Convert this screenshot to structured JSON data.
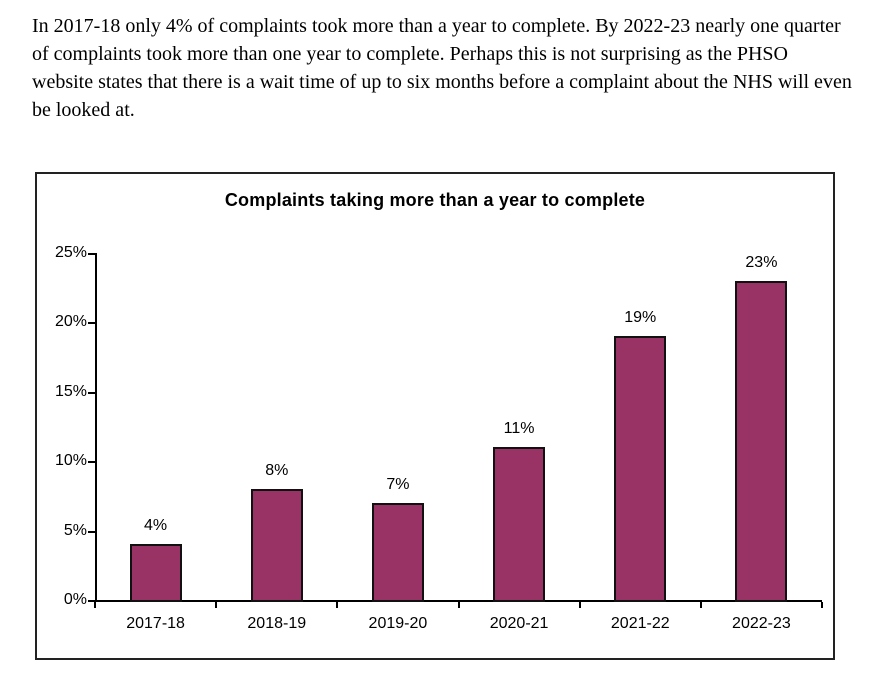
{
  "paragraph": "In 2017-18 only 4% of complaints took more than a year to complete. By 2022-23 nearly one quarter of complaints took more than one year to complete. Perhaps this is not surprising as the PHSO website states that there is a wait time of up to six months before a complaint about the NHS will even be looked at.",
  "chart_data": {
    "type": "bar",
    "title": "Complaints taking more than a year to complete",
    "categories": [
      "2017-18",
      "2018-19",
      "2019-20",
      "2020-21",
      "2021-22",
      "2022-23"
    ],
    "values": [
      4,
      8,
      7,
      11,
      19,
      23
    ],
    "data_labels": [
      "4%",
      "8%",
      "7%",
      "11%",
      "19%",
      "23%"
    ],
    "y_tick_values": [
      0,
      5,
      10,
      15,
      20,
      25
    ],
    "y_tick_labels": [
      "0%",
      "5%",
      "10%",
      "15%",
      "20%",
      "25%"
    ],
    "ylim": [
      0,
      25
    ],
    "xlabel": "",
    "ylabel": "",
    "grid": false,
    "legend": "none",
    "bar_color": "#993366",
    "bar_border_color": "#111111",
    "axis_color": "#000000"
  }
}
